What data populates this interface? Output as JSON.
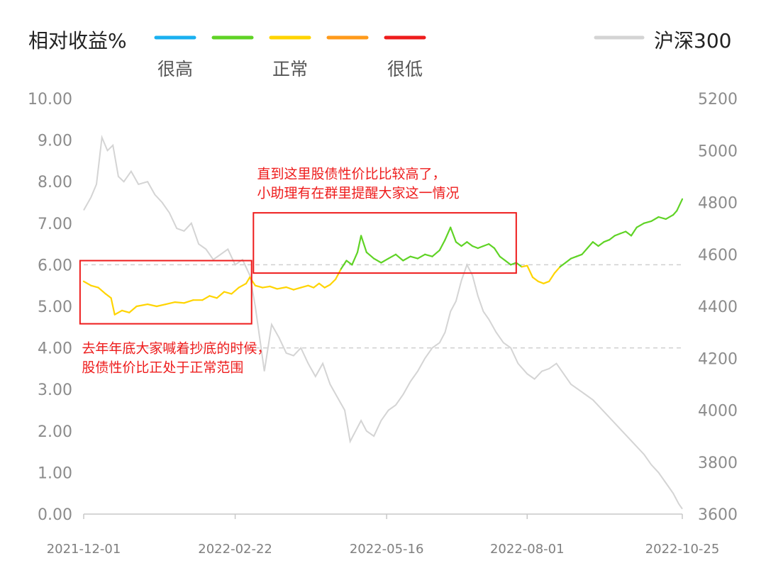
{
  "chart_data": {
    "type": "line",
    "title": "相对收益%",
    "legend": {
      "scale_colors": [
        "#1ab0f0",
        "#5fd325",
        "#ffd400",
        "#ff9a1a",
        "#ee1c1c"
      ],
      "scale_labels": [
        {
          "text": "很高",
          "color_index": 0
        },
        {
          "text": "正常",
          "color_index": 2
        },
        {
          "text": "很低",
          "color_index": 4
        }
      ],
      "benchmark_label": "沪深300",
      "benchmark_color": "#d4d4d4"
    },
    "y_left": {
      "ticks": [
        "10.00",
        "9.00",
        "8.00",
        "7.00",
        "6.00",
        "5.00",
        "4.00",
        "3.00",
        "2.00",
        "1.00",
        "0.00"
      ],
      "range": [
        0,
        10
      ]
    },
    "y_right": {
      "ticks": [
        "5200",
        "5000",
        "4800",
        "4600",
        "4400",
        "4200",
        "4000",
        "3800",
        "3600"
      ],
      "range": [
        3600,
        5200
      ]
    },
    "x": {
      "ticks": [
        "2021-12-01",
        "2022-02-22",
        "2022-05-16",
        "2022-08-01",
        "2022-10-25"
      ],
      "start": "2021-12-01",
      "end": "2022-10-25"
    },
    "threshold_lines": [
      6.0,
      4.0
    ],
    "series": [
      {
        "name": "相对收益%",
        "axis": "left",
        "color_by_value": [
          {
            "min": 6.0,
            "color": "#5fd325"
          },
          {
            "min": 4.0,
            "color": "#ffd400"
          }
        ],
        "points": [
          [
            "2021-12-01",
            5.6
          ],
          [
            "2021-12-05",
            5.5
          ],
          [
            "2021-12-09",
            5.45
          ],
          [
            "2021-12-13",
            5.3
          ],
          [
            "2021-12-16",
            5.2
          ],
          [
            "2021-12-18",
            4.8
          ],
          [
            "2021-12-22",
            4.9
          ],
          [
            "2021-12-26",
            4.85
          ],
          [
            "2021-12-30",
            5.0
          ],
          [
            "2022-01-05",
            5.05
          ],
          [
            "2022-01-10",
            5.0
          ],
          [
            "2022-01-15",
            5.05
          ],
          [
            "2022-01-20",
            5.1
          ],
          [
            "2022-01-25",
            5.08
          ],
          [
            "2022-01-30",
            5.15
          ],
          [
            "2022-02-04",
            5.15
          ],
          [
            "2022-02-08",
            5.25
          ],
          [
            "2022-02-12",
            5.2
          ],
          [
            "2022-02-16",
            5.35
          ],
          [
            "2022-02-20",
            5.3
          ],
          [
            "2022-02-24",
            5.45
          ],
          [
            "2022-02-28",
            5.55
          ],
          [
            "2022-03-02",
            5.7
          ],
          [
            "2022-03-05",
            5.5
          ],
          [
            "2022-03-09",
            5.45
          ],
          [
            "2022-03-13",
            5.48
          ],
          [
            "2022-03-17",
            5.42
          ],
          [
            "2022-03-22",
            5.46
          ],
          [
            "2022-03-26",
            5.4
          ],
          [
            "2022-03-30",
            5.45
          ],
          [
            "2022-04-03",
            5.5
          ],
          [
            "2022-04-06",
            5.45
          ],
          [
            "2022-04-09",
            5.55
          ],
          [
            "2022-04-12",
            5.45
          ],
          [
            "2022-04-15",
            5.52
          ],
          [
            "2022-04-18",
            5.65
          ],
          [
            "2022-04-21",
            5.9
          ],
          [
            "2022-04-24",
            6.1
          ],
          [
            "2022-04-27",
            6.0
          ],
          [
            "2022-04-30",
            6.3
          ],
          [
            "2022-05-02",
            6.7
          ],
          [
            "2022-05-05",
            6.3
          ],
          [
            "2022-05-09",
            6.15
          ],
          [
            "2022-05-13",
            6.05
          ],
          [
            "2022-05-17",
            6.15
          ],
          [
            "2022-05-21",
            6.25
          ],
          [
            "2022-05-25",
            6.1
          ],
          [
            "2022-05-29",
            6.2
          ],
          [
            "2022-06-02",
            6.15
          ],
          [
            "2022-06-06",
            6.25
          ],
          [
            "2022-06-10",
            6.2
          ],
          [
            "2022-06-14",
            6.35
          ],
          [
            "2022-06-17",
            6.6
          ],
          [
            "2022-06-20",
            6.9
          ],
          [
            "2022-06-23",
            6.55
          ],
          [
            "2022-06-26",
            6.45
          ],
          [
            "2022-06-29",
            6.55
          ],
          [
            "2022-07-02",
            6.45
          ],
          [
            "2022-07-05",
            6.4
          ],
          [
            "2022-07-08",
            6.45
          ],
          [
            "2022-07-11",
            6.5
          ],
          [
            "2022-07-14",
            6.4
          ],
          [
            "2022-07-17",
            6.2
          ],
          [
            "2022-07-20",
            6.1
          ],
          [
            "2022-07-23",
            6.0
          ],
          [
            "2022-07-26",
            6.05
          ],
          [
            "2022-07-29",
            5.95
          ],
          [
            "2022-08-01",
            5.98
          ],
          [
            "2022-08-04",
            5.7
          ],
          [
            "2022-08-07",
            5.6
          ],
          [
            "2022-08-10",
            5.55
          ],
          [
            "2022-08-13",
            5.6
          ],
          [
            "2022-08-16",
            5.8
          ],
          [
            "2022-08-19",
            5.95
          ],
          [
            "2022-08-22",
            6.05
          ],
          [
            "2022-08-25",
            6.15
          ],
          [
            "2022-08-28",
            6.2
          ],
          [
            "2022-08-31",
            6.25
          ],
          [
            "2022-09-03",
            6.4
          ],
          [
            "2022-09-06",
            6.55
          ],
          [
            "2022-09-09",
            6.45
          ],
          [
            "2022-09-12",
            6.55
          ],
          [
            "2022-09-15",
            6.6
          ],
          [
            "2022-09-18",
            6.7
          ],
          [
            "2022-09-21",
            6.75
          ],
          [
            "2022-09-24",
            6.8
          ],
          [
            "2022-09-27",
            6.7
          ],
          [
            "2022-09-30",
            6.9
          ],
          [
            "2022-10-04",
            7.0
          ],
          [
            "2022-10-08",
            7.05
          ],
          [
            "2022-10-12",
            7.15
          ],
          [
            "2022-10-16",
            7.1
          ],
          [
            "2022-10-20",
            7.2
          ],
          [
            "2022-10-22",
            7.3
          ],
          [
            "2022-10-25",
            7.58
          ]
        ]
      },
      {
        "name": "沪深300",
        "axis": "right",
        "color": "#d4d4d4",
        "points": [
          [
            "2021-12-01",
            4770
          ],
          [
            "2021-12-05",
            4820
          ],
          [
            "2021-12-08",
            4870
          ],
          [
            "2021-12-11",
            5050
          ],
          [
            "2021-12-14",
            5000
          ],
          [
            "2021-12-17",
            5020
          ],
          [
            "2021-12-20",
            4900
          ],
          [
            "2021-12-23",
            4880
          ],
          [
            "2021-12-27",
            4920
          ],
          [
            "2021-12-31",
            4870
          ],
          [
            "2022-01-05",
            4880
          ],
          [
            "2022-01-09",
            4830
          ],
          [
            "2022-01-13",
            4800
          ],
          [
            "2022-01-17",
            4760
          ],
          [
            "2022-01-21",
            4700
          ],
          [
            "2022-01-25",
            4690
          ],
          [
            "2022-01-29",
            4720
          ],
          [
            "2022-02-02",
            4640
          ],
          [
            "2022-02-06",
            4620
          ],
          [
            "2022-02-10",
            4580
          ],
          [
            "2022-02-14",
            4600
          ],
          [
            "2022-02-18",
            4620
          ],
          [
            "2022-02-22",
            4560
          ],
          [
            "2022-02-26",
            4580
          ],
          [
            "2022-03-02",
            4520
          ],
          [
            "2022-03-05",
            4400
          ],
          [
            "2022-03-08",
            4250
          ],
          [
            "2022-03-10",
            4150
          ],
          [
            "2022-03-14",
            4330
          ],
          [
            "2022-03-18",
            4280
          ],
          [
            "2022-03-22",
            4220
          ],
          [
            "2022-03-26",
            4210
          ],
          [
            "2022-03-30",
            4240
          ],
          [
            "2022-04-03",
            4180
          ],
          [
            "2022-04-07",
            4130
          ],
          [
            "2022-04-11",
            4180
          ],
          [
            "2022-04-15",
            4100
          ],
          [
            "2022-04-19",
            4050
          ],
          [
            "2022-04-23",
            4000
          ],
          [
            "2022-04-26",
            3880
          ],
          [
            "2022-04-29",
            3920
          ],
          [
            "2022-05-02",
            3960
          ],
          [
            "2022-05-05",
            3920
          ],
          [
            "2022-05-09",
            3900
          ],
          [
            "2022-05-13",
            3960
          ],
          [
            "2022-05-17",
            4000
          ],
          [
            "2022-05-21",
            4020
          ],
          [
            "2022-05-25",
            4060
          ],
          [
            "2022-05-29",
            4110
          ],
          [
            "2022-06-02",
            4150
          ],
          [
            "2022-06-06",
            4200
          ],
          [
            "2022-06-10",
            4240
          ],
          [
            "2022-06-14",
            4260
          ],
          [
            "2022-06-17",
            4300
          ],
          [
            "2022-06-20",
            4380
          ],
          [
            "2022-06-23",
            4420
          ],
          [
            "2022-06-26",
            4500
          ],
          [
            "2022-06-29",
            4560
          ],
          [
            "2022-07-02",
            4520
          ],
          [
            "2022-07-05",
            4440
          ],
          [
            "2022-07-08",
            4380
          ],
          [
            "2022-07-11",
            4350
          ],
          [
            "2022-07-15",
            4300
          ],
          [
            "2022-07-19",
            4260
          ],
          [
            "2022-07-23",
            4240
          ],
          [
            "2022-07-27",
            4180
          ],
          [
            "2022-08-01",
            4140
          ],
          [
            "2022-08-05",
            4120
          ],
          [
            "2022-08-09",
            4150
          ],
          [
            "2022-08-13",
            4160
          ],
          [
            "2022-08-17",
            4180
          ],
          [
            "2022-08-21",
            4140
          ],
          [
            "2022-08-25",
            4100
          ],
          [
            "2022-08-29",
            4080
          ],
          [
            "2022-09-02",
            4060
          ],
          [
            "2022-09-06",
            4040
          ],
          [
            "2022-09-10",
            4010
          ],
          [
            "2022-09-14",
            3980
          ],
          [
            "2022-09-18",
            3950
          ],
          [
            "2022-09-22",
            3920
          ],
          [
            "2022-09-26",
            3890
          ],
          [
            "2022-09-30",
            3860
          ],
          [
            "2022-10-04",
            3830
          ],
          [
            "2022-10-08",
            3790
          ],
          [
            "2022-10-12",
            3760
          ],
          [
            "2022-10-16",
            3720
          ],
          [
            "2022-10-20",
            3680
          ],
          [
            "2022-10-23",
            3640
          ],
          [
            "2022-10-25",
            3620
          ]
        ]
      }
    ],
    "annotations": [
      {
        "lines": [
          "去年年底大家喊着抄底的时候，",
          "股债性价比正处于正常范围"
        ],
        "box_x": [
          "2021-11-29",
          "2022-03-03"
        ],
        "box_y": [
          6.1,
          4.58
        ],
        "text_anchor": [
          "2021-11-30",
          4.0
        ]
      },
      {
        "lines": [
          "直到这里股债性价比比较高了，",
          "小助理有在群里提醒大家这一情况"
        ],
        "box_x": [
          "2022-03-04",
          "2022-07-26"
        ],
        "box_y": [
          7.25,
          5.8
        ],
        "text_anchor": [
          "2022-03-06",
          8.2
        ]
      }
    ]
  }
}
